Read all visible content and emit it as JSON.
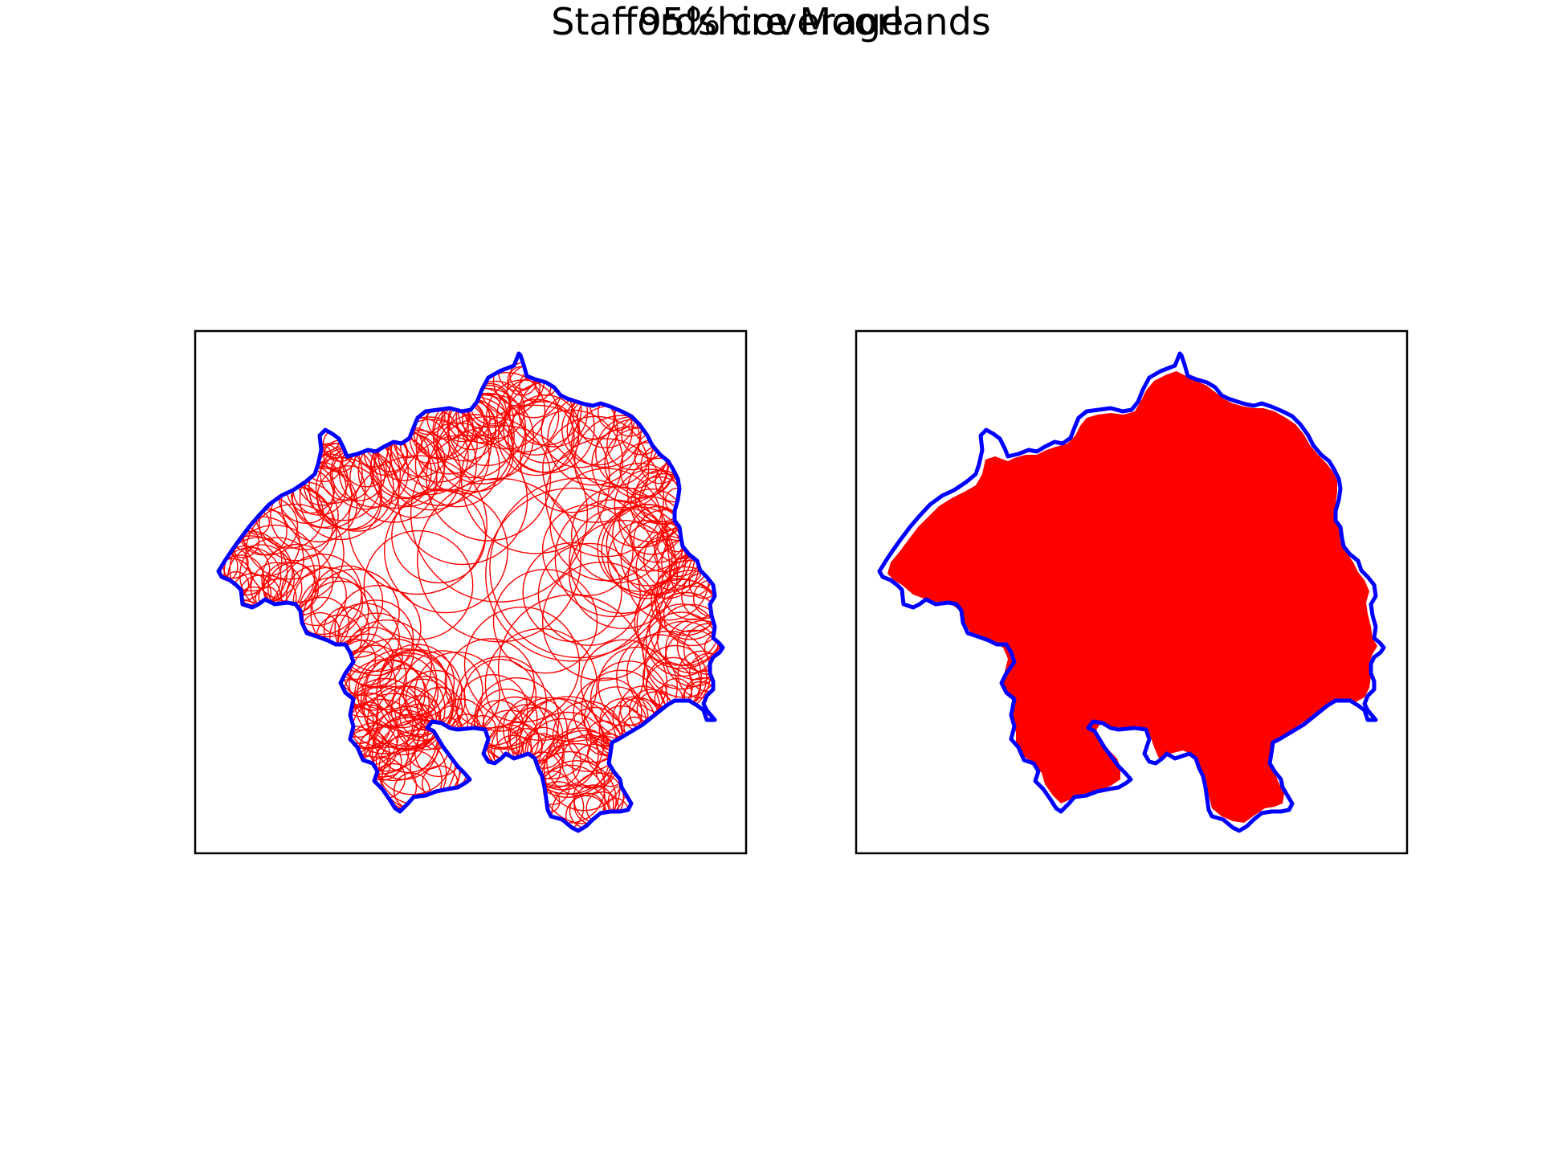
{
  "figure": {
    "title": "Staffordshire Moorlands",
    "subtitle": "95% coverage"
  },
  "colors": {
    "boundary": "#0000ff",
    "circles": "#ff0000",
    "fill": "#ff0000",
    "frame": "#000000",
    "background": "#ffffff"
  },
  "panels": [
    {
      "name": "circle-coverage-panel",
      "content": "boundary outline with covering circles"
    },
    {
      "name": "filled-coverage-panel",
      "content": "boundary outline with filled coverage region"
    }
  ]
}
